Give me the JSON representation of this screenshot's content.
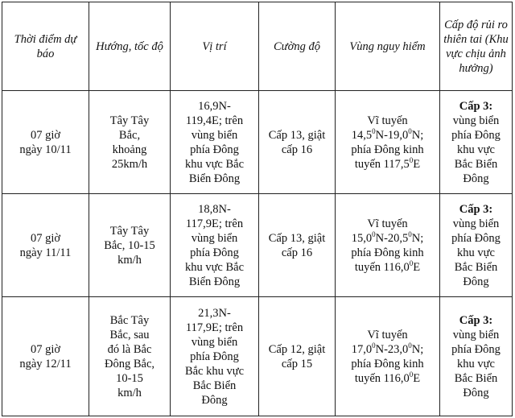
{
  "headers": [
    "Thời điểm\ndự báo",
    "Hướng, tốc\nđộ",
    "Vị trí",
    "Cường độ",
    "Vùng nguy hiểm",
    "Cấp độ rủi\nro thiên tai\n(Khu vực\nchịu ảnh\nhưởng)"
  ],
  "rows": [
    {
      "time": "07 giờ\nngày 10/11",
      "direction": "Tây Tây\nBắc,\nkhoảng\n25km/h",
      "position": "16,9N-\n119,4E; trên\nvùng biển\nphía Đông\nkhu vực Bắc\nBiển Đông",
      "intensity": "Cấp 13, giật\ncấp 16",
      "danger": {
        "lat_label": "Vĩ tuyến",
        "lat_a": "14,5",
        "lat_b": "N-19,0",
        "lat_c": "N;",
        "lon_label": "phía Đông kinh",
        "lon_prefix": "tuyến 117,5",
        "lon_suffix": "E",
        "deg": "0"
      },
      "risk_level": "Cấp 3:",
      "risk_area": "vùng biển\nphía Đông\nkhu vực\nBắc Biển\nĐông"
    },
    {
      "time": "07 giờ\nngày 11/11",
      "direction": "Tây Tây\nBắc, 10-15\nkm/h",
      "position": "18,8N-\n117,9E; trên\nvùng biển\nphía Đông\nkhu vực Bắc\nBiển Đông",
      "intensity": "Cấp 13, giật\ncấp 16",
      "danger": {
        "lat_label": "Vĩ tuyến",
        "lat_a": "15,0",
        "lat_b": "N-20,5",
        "lat_c": "N;",
        "lon_label": "phía Đông kinh",
        "lon_prefix": "tuyến 116,0",
        "lon_suffix": "E",
        "deg": "0"
      },
      "risk_level": "Cấp 3:",
      "risk_area": "vùng biển\nphía Đông\nkhu vực\nBắc Biển\nĐông"
    },
    {
      "time": "07 giờ\nngày 12/11",
      "direction": "Bắc Tây\nBắc, sau\nđó là Bắc\nĐông Bắc,\n10-15\nkm/h",
      "position": "21,3N-\n117,9E; trên\nvùng biển\nphía Đông\nBắc khu vực\nBắc Biển\nĐông",
      "intensity": "Cấp 12, giật\ncấp 15",
      "danger": {
        "lat_label": "Vĩ tuyến",
        "lat_a": "17,0",
        "lat_b": "N-23,0",
        "lat_c": "N;",
        "lon_label": "phía Đông kinh",
        "lon_prefix": "tuyến 116,0",
        "lon_suffix": "E",
        "deg": "0"
      },
      "risk_level": "Cấp 3:",
      "risk_area": "vùng biển\nphía Đông\nkhu vực\nBắc Biển\nĐông"
    }
  ]
}
